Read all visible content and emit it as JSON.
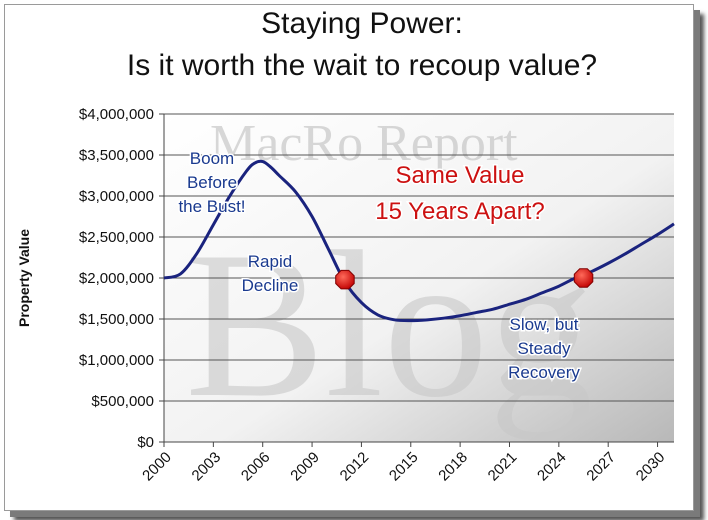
{
  "title_lines": [
    "Staying Power:",
    "Is it worth the wait to recoup value?"
  ],
  "watermark": {
    "top": "MacRo Report",
    "big": "Blog"
  },
  "chart_data": {
    "type": "line",
    "title": "Staying Power: Is it worth the wait to recoup value?",
    "xlabel": "",
    "ylabel": "Property Value",
    "xlim": [
      2000,
      2031
    ],
    "ylim": [
      0,
      4000000
    ],
    "grid": true,
    "x_ticks": [
      2000,
      2003,
      2006,
      2009,
      2012,
      2015,
      2018,
      2021,
      2024,
      2027,
      2030
    ],
    "x_tick_labels": [
      "2000",
      "2003",
      "2006",
      "2009",
      "2012",
      "2015",
      "2018",
      "2021",
      "2024",
      "2027",
      "2030"
    ],
    "y_ticks": [
      0,
      500000,
      1000000,
      1500000,
      2000000,
      2500000,
      3000000,
      3500000,
      4000000
    ],
    "y_tick_labels": [
      "$0",
      "$500,000",
      "$1,000,000",
      "$1,500,000",
      "$2,000,000",
      "$2,500,000",
      "$3,000,000",
      "$3,500,000",
      "$4,000,000"
    ],
    "series": [
      {
        "name": "",
        "color": "#1a237e",
        "x": [
          2000,
          2001,
          2002,
          2003,
          2004,
          2005,
          2005.5,
          2006,
          2006.5,
          2007,
          2008,
          2009,
          2010,
          2011,
          2012,
          2013,
          2014,
          2015,
          2016,
          2017,
          2018,
          2019,
          2020,
          2021,
          2022,
          2023,
          2024,
          2025,
          2026,
          2027,
          2028,
          2029,
          2030,
          2031
        ],
        "y": [
          2000000,
          2050000,
          2300000,
          2650000,
          3000000,
          3300000,
          3400000,
          3420000,
          3350000,
          3250000,
          3050000,
          2750000,
          2350000,
          1950000,
          1700000,
          1550000,
          1490000,
          1480000,
          1490000,
          1510000,
          1540000,
          1580000,
          1620000,
          1680000,
          1740000,
          1820000,
          1900000,
          2000000,
          2080000,
          2180000,
          2290000,
          2410000,
          2530000,
          2660000
        ]
      }
    ],
    "markers": [
      {
        "x": 2011,
        "y": 1980000,
        "color": "#e01010"
      },
      {
        "x": 2025.5,
        "y": 2000000,
        "color": "#e01010"
      }
    ],
    "annotations": [
      {
        "lines": [
          "Boom",
          "Before",
          "the Bust!"
        ],
        "color": "#1a3a8f"
      },
      {
        "lines": [
          "Rapid",
          "Decline"
        ],
        "color": "#1a3a8f"
      },
      {
        "lines": [
          "Same Value",
          "15 Years Apart?"
        ],
        "color": "#cc1111"
      },
      {
        "lines": [
          "Slow, but",
          "Steady",
          "Recovery"
        ],
        "color": "#1a3a8f"
      }
    ]
  }
}
